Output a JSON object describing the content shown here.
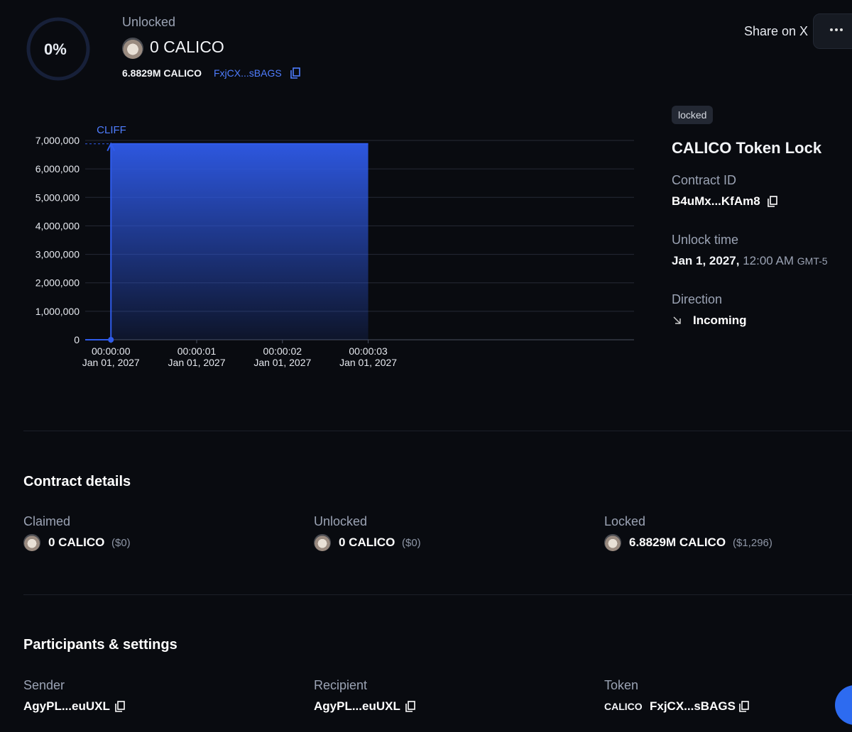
{
  "header": {
    "progress": "0%",
    "unlocked_label": "Unlocked",
    "unlocked_amount": "0 CALICO",
    "total": "6.8829M CALICO",
    "token_address": "FxjCX...sBAGS",
    "share": "Share on X"
  },
  "chart_data": {
    "type": "area",
    "cliff_label": "CLIFF",
    "x": [
      0,
      0,
      3
    ],
    "values": [
      0,
      6882900,
      6882900
    ],
    "color": "#2f5bea",
    "xlim": [
      -0.3,
      6.1
    ],
    "xticks": [
      {
        "value": 0,
        "label": "00:00:00"
      },
      {
        "value": 1,
        "label": "00:00:01"
      },
      {
        "value": 2,
        "label": "00:00:02"
      },
      {
        "value": 3,
        "label": "00:00:03"
      }
    ],
    "xtick_dates": [
      "Jan 01, 2027",
      "Jan 01, 2027",
      "Jan 01, 2027",
      "Jan 01, 2027"
    ],
    "ylim": [
      0,
      7000000
    ],
    "yticks": [
      0,
      {
        "value": 1000000,
        "label": "1,000,000"
      },
      {
        "value": 2000000,
        "label": "2,000,000"
      },
      {
        "value": 3000000,
        "label": "3,000,000"
      },
      {
        "value": 4000000,
        "label": "4,000,000"
      },
      {
        "value": 5000000,
        "label": "5,000,000"
      },
      {
        "value": 6000000,
        "label": "6,000,000"
      },
      {
        "value": 7000000,
        "label": "7,000,000"
      }
    ],
    "grid": true
  },
  "side": {
    "status": "locked",
    "title": "CALICO Token Lock",
    "contract_label": "Contract ID",
    "contract_id": "B4uMx...KfAm8",
    "unlock_label": "Unlock time",
    "unlock_date": "Jan 1, 2027,",
    "unlock_time": "12:00 AM",
    "unlock_tz": "GMT-5",
    "direction_label": "Direction",
    "direction": "Incoming"
  },
  "details": {
    "title": "Contract details",
    "items": [
      {
        "label": "Claimed",
        "amount": "0 CALICO",
        "usd": "($0)"
      },
      {
        "label": "Unlocked",
        "amount": "0 CALICO",
        "usd": "($0)"
      },
      {
        "label": "Locked",
        "amount": "6.8829M CALICO",
        "usd": "($1,296)"
      }
    ]
  },
  "participants": {
    "title": "Participants & settings",
    "sender_label": "Sender",
    "sender": "AgyPL...euUXL",
    "recipient_label": "Recipient",
    "recipient": "AgyPL...euUXL",
    "token_label": "Token",
    "token_symbol": "CALICO",
    "token_address": "FxjCX...sBAGS"
  }
}
